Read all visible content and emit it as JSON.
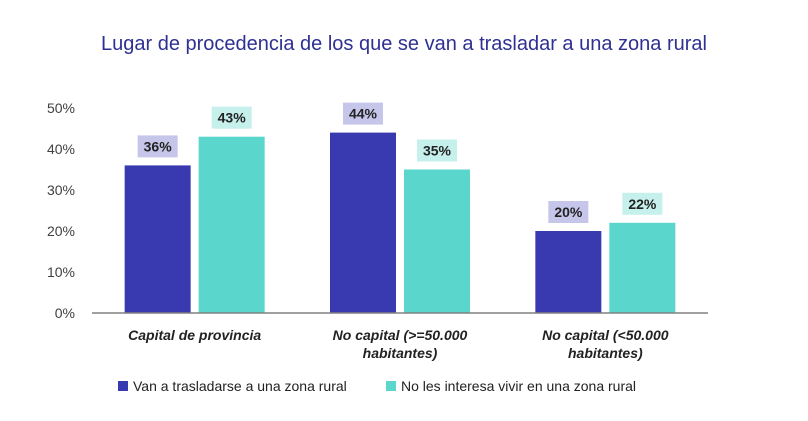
{
  "chart_data": {
    "type": "bar",
    "title": "Lugar de procedencia de los que se van a trasladar a una zona rural",
    "categories": [
      [
        "Capital de provincia"
      ],
      [
        "No capital (>=50.000",
        "habitantes)"
      ],
      [
        "No capital (<50.000",
        "habitantes)"
      ]
    ],
    "series": [
      {
        "name": "Van a trasladarse a una zona rural",
        "values": [
          36,
          44,
          20
        ],
        "color": "#3a3ab0",
        "label_bg": "#c5c6ea"
      },
      {
        "name": "No les interesa vivir en una zona rural",
        "values": [
          43,
          35,
          22
        ],
        "color": "#5ad6cc",
        "label_bg": "#c6f0ec"
      }
    ],
    "value_suffix": "%",
    "ylim": [
      0,
      50
    ],
    "yticks": [
      "0%",
      "10%",
      "20%",
      "30%",
      "40%",
      "50%"
    ],
    "ytick_values": [
      0,
      10,
      20,
      30,
      40,
      50
    ],
    "grid": false,
    "legend_position": "bottom-left",
    "axis_color": "#808080"
  }
}
